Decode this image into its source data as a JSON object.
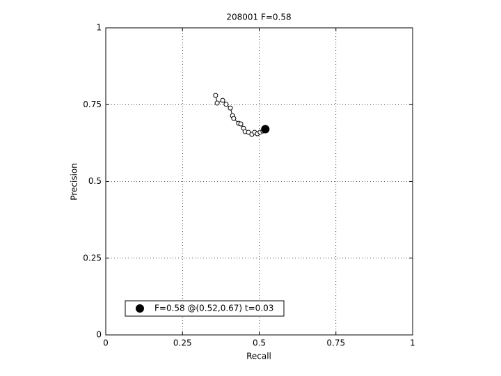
{
  "chart_data": {
    "type": "line",
    "title": "208001 F=0.58",
    "x_label": "Recall",
    "y_label": "Precision",
    "xlim": [
      0,
      1
    ],
    "ylim": [
      0,
      1
    ],
    "xticks": [
      0,
      0.25,
      0.5,
      0.75,
      1
    ],
    "yticks": [
      0,
      0.25,
      0.5,
      0.75,
      1
    ],
    "grid": true,
    "legend_position": "lower left",
    "series": [
      {
        "color": "#000000",
        "marker": "open-circle",
        "x": [
          0.358,
          0.363,
          0.381,
          0.392,
          0.406,
          0.413,
          0.417,
          0.433,
          0.44,
          0.449,
          0.454,
          0.465,
          0.476,
          0.485,
          0.494,
          0.503,
          0.512
        ],
        "values": [
          0.78,
          0.755,
          0.764,
          0.751,
          0.739,
          0.714,
          0.705,
          0.689,
          0.687,
          0.673,
          0.662,
          0.66,
          0.653,
          0.66,
          0.655,
          0.66,
          0.664
        ]
      },
      {
        "name": "F=0.58 @(0.52,0.67) t=0.03",
        "color": "#000000",
        "marker": "filled-circle",
        "x": [
          0.52
        ],
        "values": [
          0.67
        ]
      }
    ]
  }
}
